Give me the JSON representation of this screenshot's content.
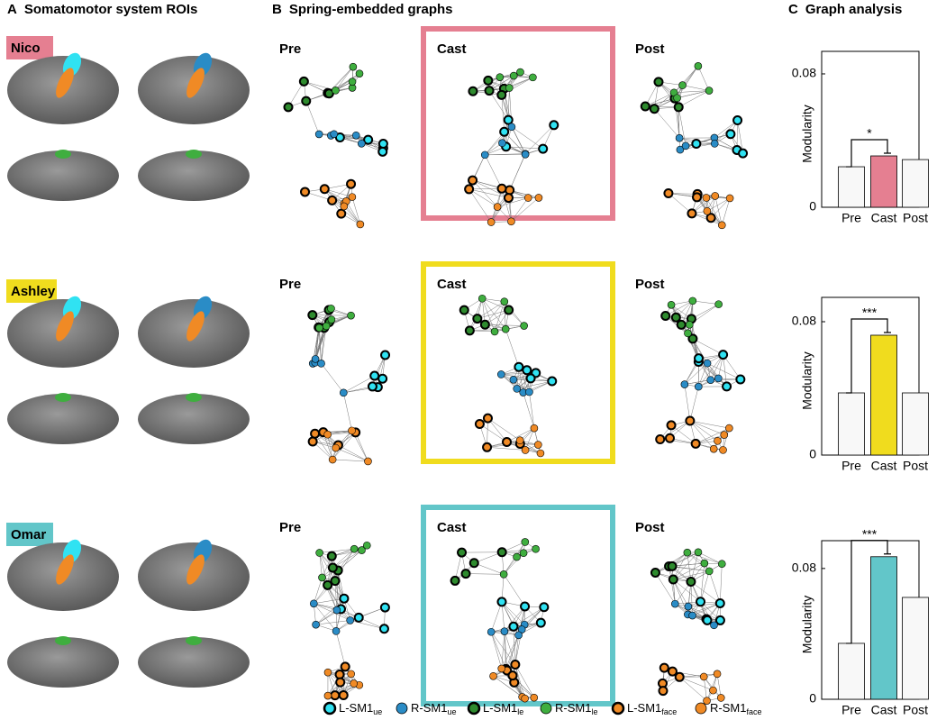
{
  "panels": [
    {
      "letter": "A",
      "title": "Somatomotor system ROIs"
    },
    {
      "letter": "B",
      "title": "Spring-embedded graphs"
    },
    {
      "letter": "C",
      "title": "Graph analysis"
    }
  ],
  "subjects": [
    {
      "name": "Nico",
      "color": "#e57f91"
    },
    {
      "name": "Ashley",
      "color": "#f0dc1e"
    },
    {
      "name": "Omar",
      "color": "#62c6c9"
    }
  ],
  "conditions": [
    "Pre",
    "Cast",
    "Post"
  ],
  "legend": [
    {
      "label": "L-SM1",
      "sub": "ue",
      "color": "#30e2f2",
      "bold_ring": true
    },
    {
      "label": "R-SM1",
      "sub": "ue",
      "color": "#2a8cc6",
      "bold_ring": false
    },
    {
      "label": "L-SM1",
      "sub": "le",
      "color": "#2e8b2e",
      "bold_ring": true
    },
    {
      "label": "R-SM1",
      "sub": "le",
      "color": "#3fae3f",
      "bold_ring": false
    },
    {
      "label": "L-SM1",
      "sub": "face",
      "color": "#f08a25",
      "bold_ring": true
    },
    {
      "label": "R-SM1",
      "sub": "face",
      "color": "#f08a25",
      "bold_ring": false
    }
  ],
  "chart_data": [
    {
      "type": "bar",
      "ylabel": "Modularity",
      "categories": [
        "Pre",
        "Cast",
        "Post"
      ],
      "values": [
        0.0243,
        0.0308,
        0.0286
      ],
      "colors": [
        "#f8f8f8",
        "#e57f91",
        "#f8f8f8"
      ],
      "ylim": [
        0,
        0.0935
      ],
      "yticks": [
        0,
        0.08
      ],
      "annotation": "*"
    },
    {
      "type": "bar",
      "ylabel": "Modularity",
      "categories": [
        "Pre",
        "Cast",
        "Post"
      ],
      "values": [
        0.0373,
        0.0719,
        0.0373
      ],
      "colors": [
        "#f8f8f8",
        "#f0dc1e",
        "#f8f8f8"
      ],
      "ylim": [
        0,
        0.0946
      ],
      "yticks": [
        0,
        0.08
      ],
      "annotation": "***"
    },
    {
      "type": "bar",
      "ylabel": "Modularity",
      "categories": [
        "Pre",
        "Cast",
        "Post"
      ],
      "values": [
        0.0342,
        0.0872,
        0.0623
      ],
      "colors": [
        "#f8f8f8",
        "#62c6c9",
        "#f8f8f8"
      ],
      "ylim": [
        0,
        0.097
      ],
      "yticks": [
        0,
        0.08
      ],
      "annotation": "***"
    }
  ]
}
